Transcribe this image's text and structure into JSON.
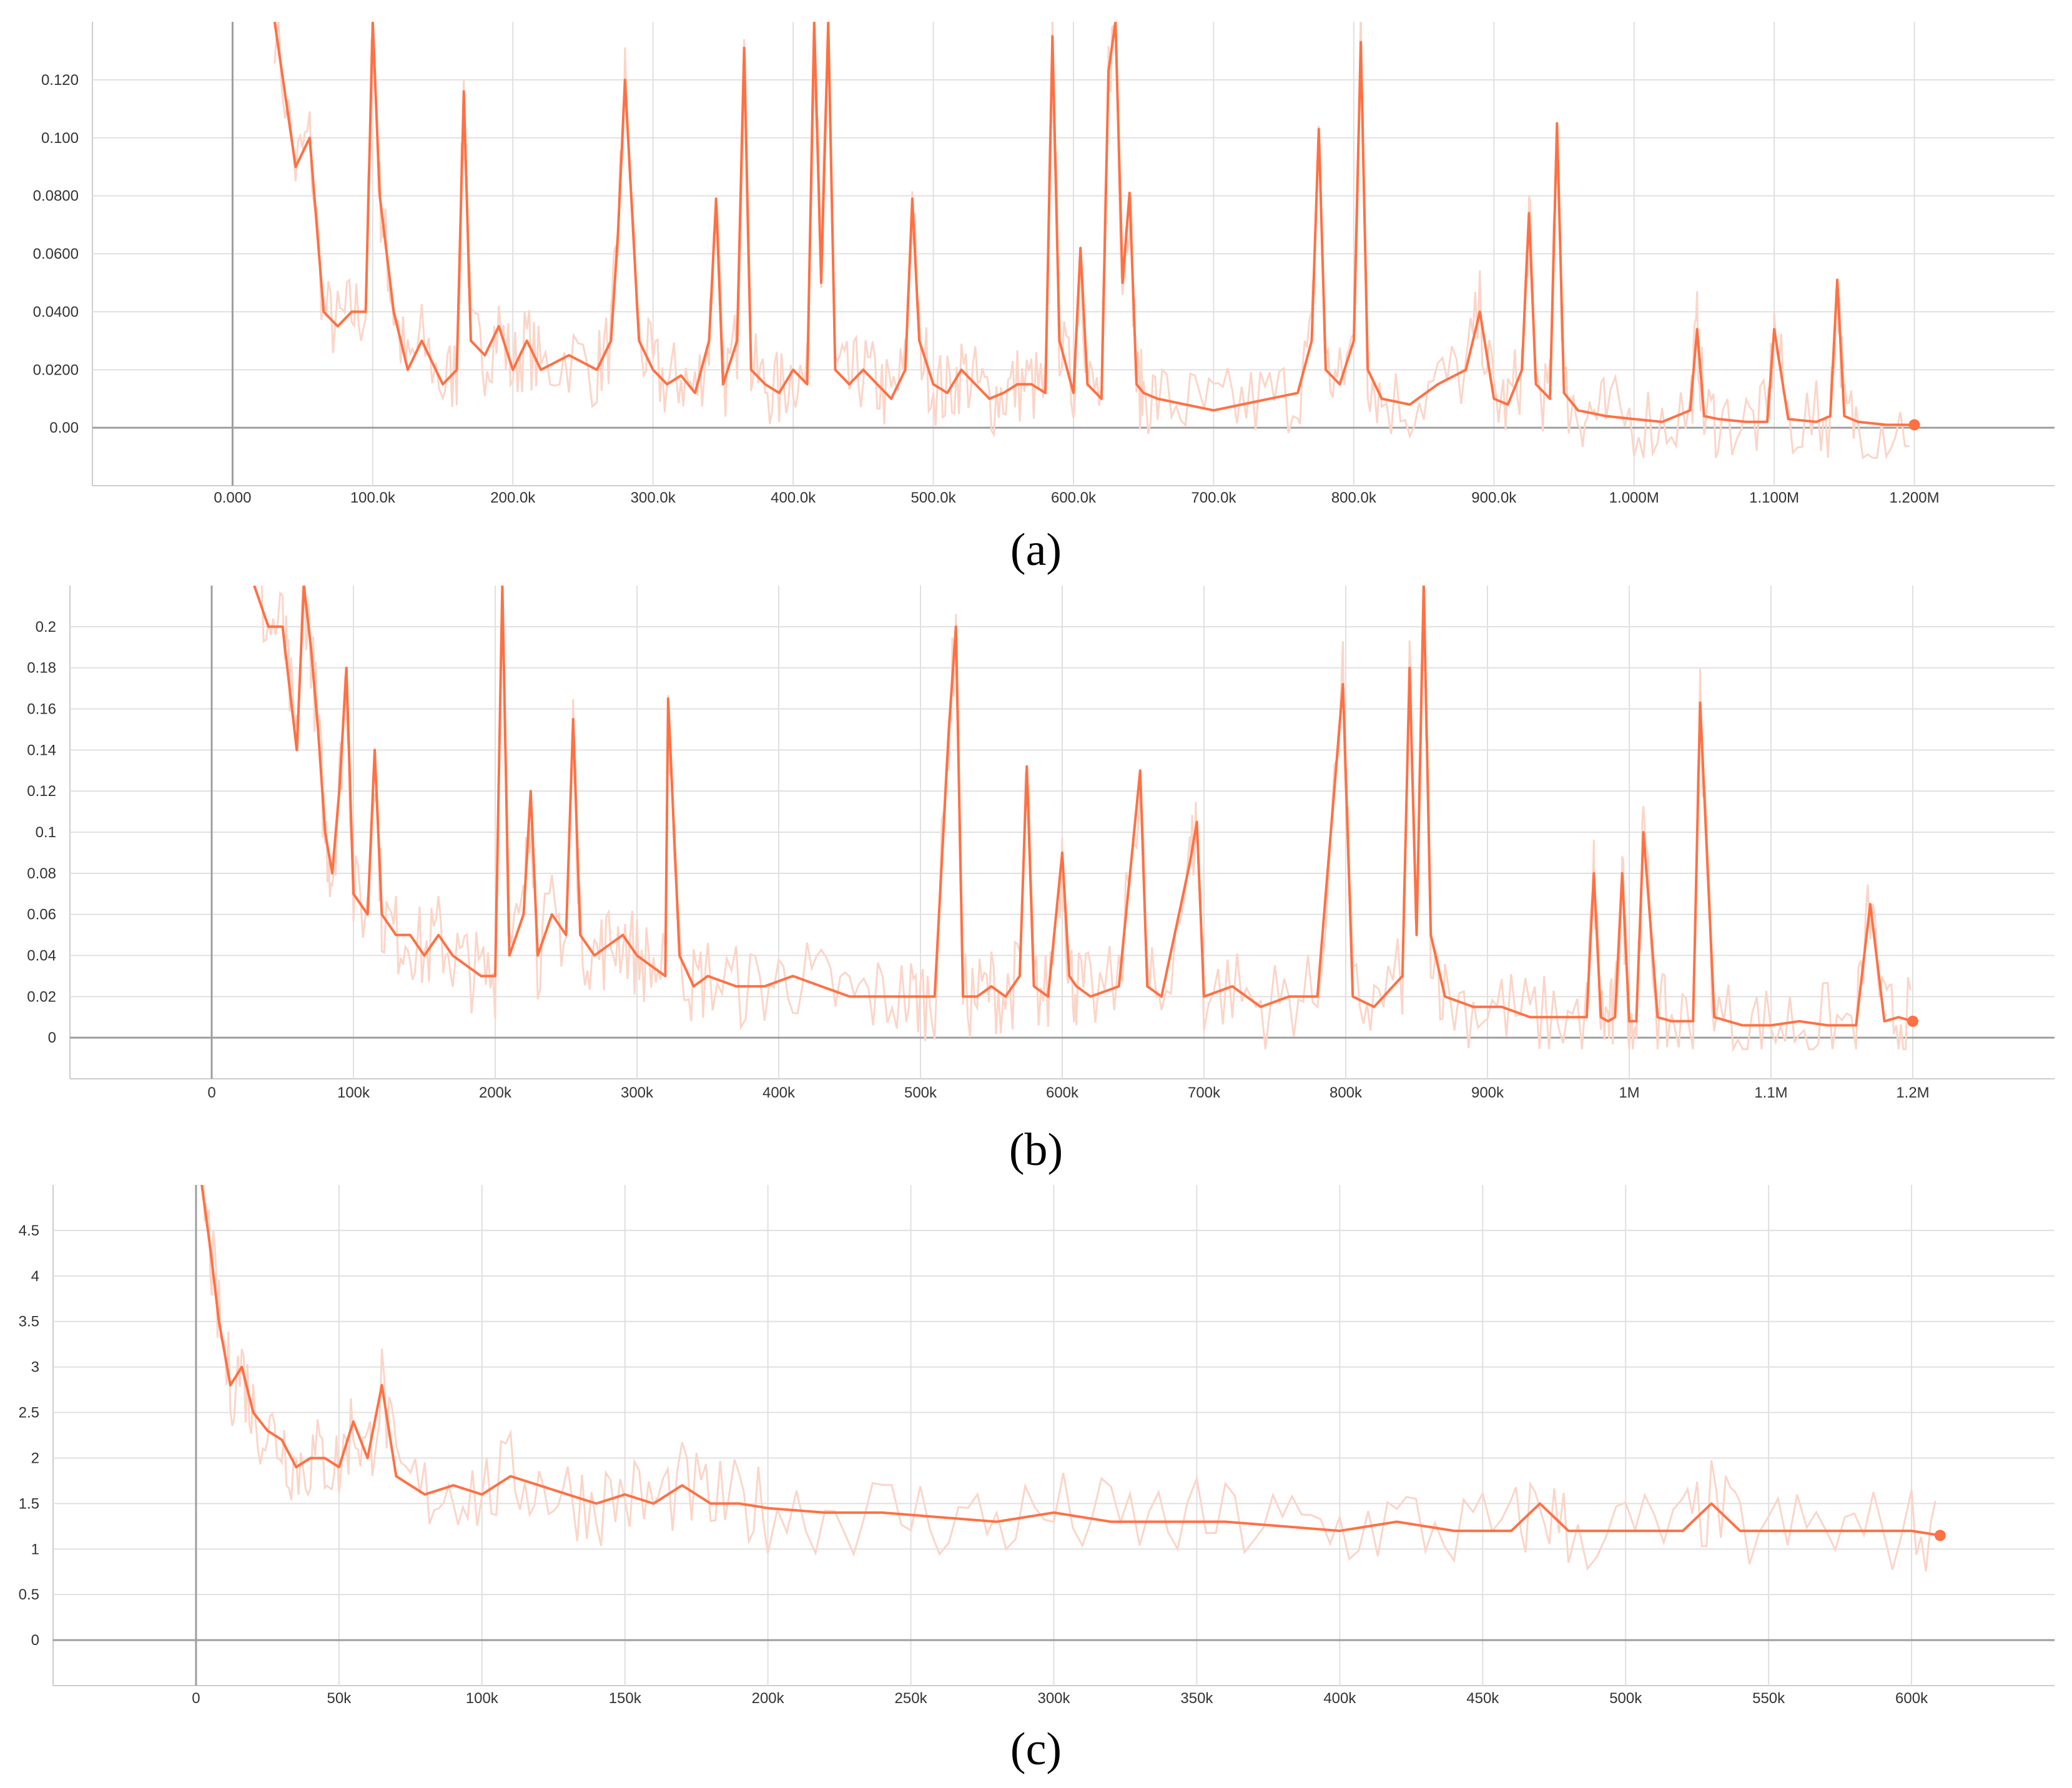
{
  "chart_data": [
    {
      "type": "line",
      "panel_label": "(a)",
      "title": "",
      "xlabel": "",
      "ylabel": "",
      "xlim": [
        -100000,
        1300000
      ],
      "ylim": [
        -0.02,
        0.14
      ],
      "grid": true,
      "x_ticks": [
        0,
        100000,
        200000,
        300000,
        400000,
        500000,
        600000,
        700000,
        800000,
        900000,
        1000000,
        1100000,
        1200000
      ],
      "x_tick_labels": [
        "0.000",
        "100.0k",
        "200.0k",
        "300.0k",
        "400.0k",
        "500.0k",
        "600.0k",
        "700.0k",
        "800.0k",
        "900.0k",
        "1.000M",
        "1.100M",
        "1.200M"
      ],
      "y_ticks": [
        0,
        0.02,
        0.04,
        0.06,
        0.08,
        0.1,
        0.12
      ],
      "y_tick_labels": [
        "0.00",
        "0.0200",
        "0.0400",
        "0.0600",
        "0.0800",
        "0.100",
        "0.120"
      ],
      "series": [
        {
          "x": [
            30000,
            45000,
            55000,
            65000,
            75000,
            85000,
            95000,
            100000,
            105000,
            110000,
            115000,
            125000,
            135000,
            150000,
            160000,
            165000,
            170000,
            180000,
            190000,
            200000,
            210000,
            220000,
            240000,
            260000,
            270000,
            275000,
            280000,
            290000,
            300000,
            310000,
            320000,
            330000,
            340000,
            345000,
            350000,
            360000,
            365000,
            370000,
            380000,
            390000,
            400000,
            410000,
            415000,
            420000,
            425000,
            430000,
            440000,
            450000,
            460000,
            470000,
            480000,
            485000,
            490000,
            500000,
            510000,
            520000,
            530000,
            540000,
            550000,
            560000,
            570000,
            580000,
            585000,
            590000,
            600000,
            605000,
            610000,
            620000,
            625000,
            630000,
            635000,
            640000,
            645000,
            650000,
            660000,
            680000,
            700000,
            720000,
            740000,
            760000,
            770000,
            775000,
            780000,
            790000,
            800000,
            805000,
            810000,
            820000,
            840000,
            860000,
            880000,
            890000,
            900000,
            910000,
            920000,
            925000,
            930000,
            940000,
            945000,
            950000,
            960000,
            970000,
            980000,
            1000000,
            1020000,
            1040000,
            1045000,
            1050000,
            1060000,
            1080000,
            1095000,
            1100000,
            1110000,
            1130000,
            1140000,
            1145000,
            1150000,
            1160000,
            1180000,
            1200000
          ],
          "y": [
            0.14,
            0.09,
            0.1,
            0.04,
            0.035,
            0.04,
            0.04,
            0.14,
            0.08,
            0.06,
            0.04,
            0.02,
            0.03,
            0.015,
            0.02,
            0.116,
            0.03,
            0.025,
            0.035,
            0.02,
            0.03,
            0.02,
            0.025,
            0.02,
            0.03,
            0.067,
            0.12,
            0.03,
            0.02,
            0.015,
            0.018,
            0.012,
            0.03,
            0.079,
            0.015,
            0.03,
            0.131,
            0.02,
            0.015,
            0.012,
            0.02,
            0.015,
            0.14,
            0.05,
            0.14,
            0.02,
            0.015,
            0.02,
            0.015,
            0.01,
            0.02,
            0.079,
            0.03,
            0.015,
            0.012,
            0.02,
            0.015,
            0.01,
            0.012,
            0.015,
            0.015,
            0.012,
            0.135,
            0.03,
            0.012,
            0.062,
            0.015,
            0.01,
            0.123,
            0.14,
            0.05,
            0.081,
            0.015,
            0.012,
            0.01,
            0.008,
            0.006,
            0.008,
            0.01,
            0.012,
            0.03,
            0.103,
            0.02,
            0.015,
            0.03,
            0.133,
            0.02,
            0.01,
            0.008,
            0.015,
            0.02,
            0.04,
            0.01,
            0.008,
            0.02,
            0.074,
            0.015,
            0.01,
            0.105,
            0.012,
            0.006,
            0.005,
            0.004,
            0.003,
            0.002,
            0.006,
            0.034,
            0.004,
            0.003,
            0.002,
            0.002,
            0.034,
            0.003,
            0.002,
            0.004,
            0.051,
            0.004,
            0.002,
            0.001,
            0.001
          ]
        }
      ]
    },
    {
      "type": "line",
      "panel_label": "(b)",
      "title": "",
      "xlabel": "",
      "ylabel": "",
      "xlim": [
        -100000,
        1300000
      ],
      "ylim": [
        -0.02,
        0.22
      ],
      "grid": true,
      "x_ticks": [
        0,
        100000,
        200000,
        300000,
        400000,
        500000,
        600000,
        700000,
        800000,
        900000,
        1000000,
        1100000,
        1200000
      ],
      "x_tick_labels": [
        "0",
        "100k",
        "200k",
        "300k",
        "400k",
        "500k",
        "600k",
        "700k",
        "800k",
        "900k",
        "1M",
        "1.1M",
        "1.2M"
      ],
      "y_ticks": [
        0,
        0.02,
        0.04,
        0.06,
        0.08,
        0.1,
        0.12,
        0.14,
        0.16,
        0.18,
        0.2
      ],
      "y_tick_labels": [
        "0",
        "0.02",
        "0.04",
        "0.06",
        "0.08",
        "0.1",
        "0.12",
        "0.14",
        "0.16",
        "0.18",
        "0.2"
      ],
      "series": [
        {
          "x": [
            30000,
            40000,
            50000,
            55000,
            60000,
            65000,
            70000,
            75000,
            80000,
            85000,
            90000,
            95000,
            100000,
            110000,
            115000,
            120000,
            130000,
            140000,
            150000,
            160000,
            170000,
            180000,
            190000,
            200000,
            205000,
            210000,
            220000,
            225000,
            230000,
            240000,
            250000,
            255000,
            260000,
            270000,
            280000,
            290000,
            300000,
            310000,
            320000,
            322000,
            330000,
            340000,
            350000,
            370000,
            390000,
            410000,
            430000,
            450000,
            470000,
            490000,
            500000,
            510000,
            520000,
            525000,
            530000,
            540000,
            550000,
            560000,
            570000,
            575000,
            580000,
            590000,
            600000,
            605000,
            610000,
            620000,
            640000,
            655000,
            660000,
            670000,
            690000,
            695000,
            700000,
            720000,
            740000,
            760000,
            780000,
            798000,
            805000,
            820000,
            840000,
            845000,
            850000,
            855000,
            860000,
            870000,
            890000,
            910000,
            930000,
            950000,
            970000,
            975000,
            980000,
            985000,
            990000,
            995000,
            1000000,
            1005000,
            1010000,
            1020000,
            1030000,
            1045000,
            1050000,
            1060000,
            1080000,
            1100000,
            1120000,
            1140000,
            1160000,
            1170000,
            1180000,
            1190000,
            1200000
          ],
          "y": [
            0.22,
            0.2,
            0.2,
            0.17,
            0.14,
            0.22,
            0.19,
            0.15,
            0.1,
            0.08,
            0.12,
            0.18,
            0.07,
            0.06,
            0.14,
            0.06,
            0.05,
            0.05,
            0.04,
            0.05,
            0.04,
            0.035,
            0.03,
            0.03,
            0.22,
            0.04,
            0.06,
            0.12,
            0.04,
            0.06,
            0.05,
            0.155,
            0.05,
            0.04,
            0.045,
            0.05,
            0.04,
            0.035,
            0.03,
            0.165,
            0.04,
            0.025,
            0.03,
            0.025,
            0.025,
            0.03,
            0.025,
            0.02,
            0.02,
            0.02,
            0.02,
            0.02,
            0.15,
            0.2,
            0.02,
            0.02,
            0.025,
            0.02,
            0.03,
            0.132,
            0.025,
            0.02,
            0.09,
            0.03,
            0.025,
            0.02,
            0.025,
            0.13,
            0.025,
            0.02,
            0.085,
            0.105,
            0.02,
            0.025,
            0.015,
            0.02,
            0.02,
            0.172,
            0.02,
            0.015,
            0.03,
            0.18,
            0.05,
            0.22,
            0.05,
            0.02,
            0.015,
            0.015,
            0.01,
            0.01,
            0.01,
            0.08,
            0.01,
            0.008,
            0.01,
            0.08,
            0.008,
            0.008,
            0.1,
            0.01,
            0.008,
            0.008,
            0.163,
            0.01,
            0.006,
            0.006,
            0.008,
            0.006,
            0.006,
            0.065,
            0.008,
            0.01,
            0.008
          ]
        }
      ]
    },
    {
      "type": "line",
      "panel_label": "(c)",
      "title": "",
      "xlabel": "",
      "ylabel": "",
      "xlim": [
        -50000,
        650000
      ],
      "ylim": [
        -0.5,
        5
      ],
      "grid": true,
      "x_ticks": [
        0,
        50000,
        100000,
        150000,
        200000,
        250000,
        300000,
        350000,
        400000,
        450000,
        500000,
        550000,
        600000
      ],
      "x_tick_labels": [
        "0",
        "50k",
        "100k",
        "150k",
        "200k",
        "250k",
        "300k",
        "350k",
        "400k",
        "450k",
        "500k",
        "550k",
        "600k"
      ],
      "y_ticks": [
        0,
        0.5,
        1,
        1.5,
        2,
        2.5,
        3,
        3.5,
        4,
        4.5
      ],
      "y_tick_labels": [
        "0",
        "0.5",
        "1",
        "1.5",
        "2",
        "2.5",
        "3",
        "3.5",
        "4",
        "4.5"
      ],
      "series": [
        {
          "x": [
            2000,
            5000,
            8000,
            12000,
            16000,
            20000,
            25000,
            30000,
            35000,
            40000,
            45000,
            50000,
            55000,
            60000,
            65000,
            70000,
            80000,
            90000,
            100000,
            110000,
            120000,
            130000,
            140000,
            150000,
            160000,
            170000,
            180000,
            190000,
            200000,
            220000,
            240000,
            260000,
            280000,
            300000,
            320000,
            340000,
            360000,
            380000,
            400000,
            420000,
            440000,
            460000,
            470000,
            480000,
            500000,
            520000,
            530000,
            540000,
            560000,
            580000,
            600000,
            610000
          ],
          "y": [
            5.0,
            4.3,
            3.5,
            2.8,
            3.0,
            2.5,
            2.3,
            2.2,
            1.9,
            2.0,
            2.0,
            1.9,
            2.4,
            2.0,
            2.8,
            1.8,
            1.6,
            1.7,
            1.6,
            1.8,
            1.7,
            1.6,
            1.5,
            1.6,
            1.5,
            1.7,
            1.5,
            1.5,
            1.45,
            1.4,
            1.4,
            1.35,
            1.3,
            1.4,
            1.3,
            1.3,
            1.3,
            1.25,
            1.2,
            1.3,
            1.2,
            1.2,
            1.5,
            1.2,
            1.2,
            1.2,
            1.5,
            1.2,
            1.2,
            1.2,
            1.2,
            1.15
          ]
        }
      ]
    }
  ],
  "colors": {
    "line": "#ff7043",
    "raw": "#fbd5c8",
    "grid": "#e0e0e0",
    "axis": "#9e9e9e",
    "tick_text": "#333333",
    "label_text": "#000000"
  }
}
